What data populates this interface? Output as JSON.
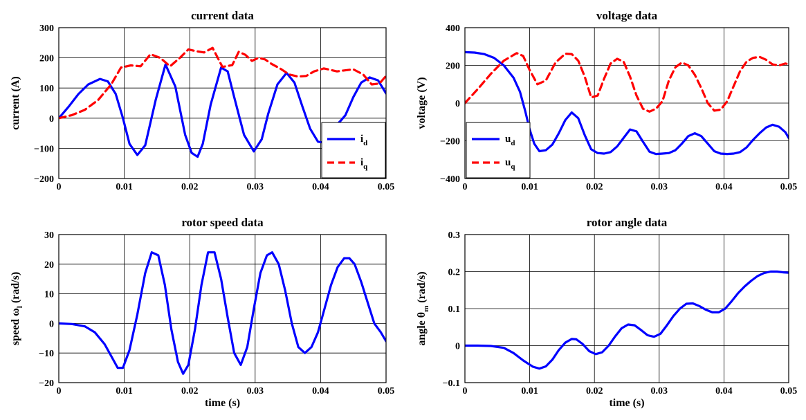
{
  "colors": {
    "d": "#0000ff",
    "q": "#ff0000",
    "grid": "#000000",
    "axis": "#000000"
  },
  "chart_data": [
    {
      "type": "line",
      "title": "current data",
      "ylabel": "current (A)",
      "xlabel": "",
      "xlim": [
        0,
        0.05
      ],
      "ylim": [
        -200,
        300
      ],
      "xticks": [
        "0",
        "0.01",
        "0.02",
        "0.03",
        "0.04",
        "0.05"
      ],
      "yticks": [
        "−200",
        "−100",
        "0",
        "100",
        "200",
        "300"
      ],
      "grid": true,
      "legend": {
        "position": "bottom-right",
        "entries": [
          {
            "main": "i",
            "sub": "d"
          },
          {
            "main": "i",
            "sub": "q"
          }
        ]
      },
      "series": [
        {
          "style": "solid",
          "color": "#0000ff",
          "x": [
            0,
            0.0015,
            0.003,
            0.0045,
            0.0063,
            0.0075,
            0.0087,
            0.0098,
            0.0108,
            0.012,
            0.0132,
            0.0148,
            0.0163,
            0.0178,
            0.0193,
            0.0203,
            0.0212,
            0.022,
            0.0232,
            0.0248,
            0.0258,
            0.0268,
            0.0283,
            0.0298,
            0.031,
            0.032,
            0.0334,
            0.0348,
            0.036,
            0.0372,
            0.0384,
            0.0396,
            0.0408,
            0.0418,
            0.0423,
            0.043,
            0.0438,
            0.045,
            0.0462,
            0.0475,
            0.0488,
            0.05
          ],
          "y": [
            0,
            38,
            80,
            112,
            130,
            122,
            80,
            0,
            -85,
            -122,
            -90,
            60,
            178,
            105,
            -55,
            -115,
            -128,
            -85,
            45,
            168,
            155,
            70,
            -55,
            -110,
            -70,
            15,
            112,
            150,
            118,
            40,
            -35,
            -78,
            -82,
            -40,
            -25,
            -10,
            10,
            70,
            118,
            135,
            125,
            82
          ]
        },
        {
          "style": "dashed",
          "color": "#ff0000",
          "x": [
            0,
            0.002,
            0.004,
            0.006,
            0.008,
            0.0095,
            0.011,
            0.0125,
            0.014,
            0.0155,
            0.017,
            0.0185,
            0.0198,
            0.021,
            0.0222,
            0.0235,
            0.025,
            0.0265,
            0.0275,
            0.0285,
            0.0295,
            0.0305,
            0.0315,
            0.0325,
            0.0338,
            0.0352,
            0.0365,
            0.0378,
            0.039,
            0.0405,
            0.0415,
            0.0425,
            0.0435,
            0.045,
            0.0465,
            0.0478,
            0.049,
            0.05
          ],
          "y": [
            0,
            10,
            28,
            60,
            112,
            168,
            175,
            172,
            212,
            200,
            172,
            200,
            228,
            222,
            218,
            233,
            170,
            176,
            220,
            210,
            190,
            200,
            195,
            180,
            165,
            145,
            138,
            140,
            155,
            165,
            160,
            155,
            158,
            162,
            145,
            112,
            115,
            140
          ]
        }
      ]
    },
    {
      "type": "line",
      "title": "voltage data",
      "ylabel": "voltage (V)",
      "xlabel": "",
      "xlim": [
        0,
        0.05
      ],
      "ylim": [
        -400,
        400
      ],
      "xticks": [
        "0",
        "0.01",
        "0.02",
        "0.03",
        "0.04",
        "0.05"
      ],
      "yticks": [
        "−400",
        "−200",
        "0",
        "200",
        "400"
      ],
      "grid": true,
      "legend": {
        "position": "bottom-left",
        "entries": [
          {
            "main": "u",
            "sub": "d"
          },
          {
            "main": "u",
            "sub": "q"
          }
        ]
      },
      "series": [
        {
          "style": "solid",
          "color": "#0000ff",
          "x": [
            0,
            0.0015,
            0.003,
            0.0045,
            0.006,
            0.0075,
            0.0085,
            0.0093,
            0.01,
            0.0107,
            0.0115,
            0.0125,
            0.0135,
            0.0145,
            0.0155,
            0.0165,
            0.0175,
            0.0185,
            0.0195,
            0.0205,
            0.0215,
            0.0225,
            0.0235,
            0.0245,
            0.0255,
            0.0265,
            0.0275,
            0.0285,
            0.0295,
            0.0305,
            0.0315,
            0.0325,
            0.0335,
            0.0345,
            0.0355,
            0.0365,
            0.0375,
            0.0385,
            0.0395,
            0.0405,
            0.0415,
            0.0425,
            0.0435,
            0.0445,
            0.0455,
            0.0465,
            0.0475,
            0.0485,
            0.0495,
            0.05
          ],
          "y": [
            270,
            268,
            260,
            240,
            200,
            135,
            60,
            -40,
            -140,
            -215,
            -255,
            -250,
            -220,
            -160,
            -90,
            -50,
            -80,
            -170,
            -245,
            -265,
            -268,
            -260,
            -230,
            -185,
            -140,
            -150,
            -205,
            -258,
            -270,
            -268,
            -265,
            -250,
            -215,
            -175,
            -160,
            -175,
            -215,
            -255,
            -268,
            -270,
            -268,
            -260,
            -235,
            -195,
            -160,
            -130,
            -115,
            -125,
            -155,
            -185
          ]
        },
        {
          "style": "dashed",
          "color": "#ff0000",
          "x": [
            0,
            0.002,
            0.004,
            0.006,
            0.008,
            0.009,
            0.01,
            0.0112,
            0.0125,
            0.014,
            0.0155,
            0.0165,
            0.0175,
            0.0185,
            0.0195,
            0.0205,
            0.0215,
            0.0225,
            0.0235,
            0.0245,
            0.0255,
            0.0265,
            0.0275,
            0.0285,
            0.0295,
            0.0305,
            0.0315,
            0.0325,
            0.0335,
            0.0345,
            0.0355,
            0.0365,
            0.0375,
            0.0385,
            0.0395,
            0.0405,
            0.0415,
            0.0425,
            0.0435,
            0.0445,
            0.0455,
            0.0465,
            0.0475,
            0.0485,
            0.0495,
            0.05
          ],
          "y": [
            0,
            75,
            155,
            225,
            265,
            250,
            175,
            100,
            120,
            215,
            262,
            260,
            225,
            140,
            30,
            40,
            130,
            210,
            235,
            220,
            140,
            40,
            -30,
            -45,
            -30,
            10,
            120,
            190,
            215,
            200,
            150,
            80,
            0,
            -40,
            -35,
            10,
            90,
            170,
            220,
            240,
            245,
            230,
            205,
            200,
            210,
            205
          ]
        }
      ]
    },
    {
      "type": "line",
      "title": "rotor speed data",
      "ylabel": "speed ω",
      "ylabel_sub": "l",
      "ylabel_unit": " (rad/s)",
      "xlabel": "time (s)",
      "xlim": [
        0,
        0.05
      ],
      "ylim": [
        -20,
        30
      ],
      "xticks": [
        "0",
        "0.01",
        "0.02",
        "0.03",
        "0.04",
        "0.05"
      ],
      "yticks": [
        "−20",
        "−10",
        "0",
        "10",
        "20",
        "30"
      ],
      "grid": true,
      "series": [
        {
          "style": "solid",
          "color": "#0000ff",
          "x": [
            0,
            0.002,
            0.004,
            0.0055,
            0.007,
            0.008,
            0.009,
            0.0098,
            0.0108,
            0.012,
            0.0132,
            0.0142,
            0.0152,
            0.0162,
            0.0172,
            0.0182,
            0.019,
            0.0198,
            0.0208,
            0.0218,
            0.0228,
            0.0238,
            0.0248,
            0.0258,
            0.0268,
            0.0278,
            0.0288,
            0.0298,
            0.0308,
            0.0318,
            0.0326,
            0.0336,
            0.0346,
            0.0356,
            0.0366,
            0.0376,
            0.0386,
            0.0396,
            0.0406,
            0.0416,
            0.0426,
            0.0436,
            0.0444,
            0.0452,
            0.0462,
            0.0472,
            0.0482,
            0.0492,
            0.05
          ],
          "y": [
            0,
            -0.2,
            -1,
            -3,
            -7,
            -11,
            -15,
            -15,
            -9,
            3,
            17,
            24,
            23,
            13,
            -2,
            -13,
            -17,
            -14,
            -2,
            13,
            24,
            24,
            15,
            2,
            -10,
            -14,
            -8,
            5,
            17,
            23,
            24,
            20,
            11,
            0,
            -8,
            -10,
            -8,
            -3,
            5,
            13,
            19,
            22,
            22,
            20,
            14,
            7,
            0,
            -3,
            -6
          ]
        }
      ]
    },
    {
      "type": "line",
      "title": "rotor angle data",
      "ylabel": "angle θ",
      "ylabel_sub": "m",
      "ylabel_unit": " (rad/s)",
      "xlabel": "time (s)",
      "xlim": [
        0,
        0.05
      ],
      "ylim": [
        -0.1,
        0.3
      ],
      "xticks": [
        "0",
        "0.01",
        "0.02",
        "0.03",
        "0.04",
        "0.05"
      ],
      "yticks": [
        "−0.1",
        "0",
        "0.1",
        "0.2",
        "0.3"
      ],
      "grid": true,
      "series": [
        {
          "style": "solid",
          "color": "#0000ff",
          "x": [
            0,
            0.002,
            0.004,
            0.006,
            0.0075,
            0.009,
            0.0105,
            0.0115,
            0.0125,
            0.0135,
            0.0145,
            0.0155,
            0.0165,
            0.0172,
            0.0182,
            0.0192,
            0.0202,
            0.0212,
            0.0222,
            0.0232,
            0.0242,
            0.0252,
            0.0262,
            0.0272,
            0.0282,
            0.0292,
            0.0302,
            0.0312,
            0.0322,
            0.0332,
            0.0342,
            0.0352,
            0.0362,
            0.0372,
            0.0382,
            0.0392,
            0.0402,
            0.0412,
            0.0422,
            0.0432,
            0.0442,
            0.0452,
            0.0462,
            0.0472,
            0.0482,
            0.0492,
            0.05
          ],
          "y": [
            0,
            0,
            -0.001,
            -0.006,
            -0.02,
            -0.04,
            -0.057,
            -0.062,
            -0.056,
            -0.038,
            -0.012,
            0.008,
            0.018,
            0.017,
            0.004,
            -0.015,
            -0.023,
            -0.018,
            0,
            0.025,
            0.047,
            0.057,
            0.055,
            0.042,
            0.028,
            0.024,
            0.032,
            0.055,
            0.08,
            0.1,
            0.113,
            0.114,
            0.107,
            0.097,
            0.09,
            0.09,
            0.1,
            0.12,
            0.142,
            0.16,
            0.175,
            0.188,
            0.196,
            0.2,
            0.2,
            0.198,
            0.197
          ]
        }
      ]
    }
  ]
}
